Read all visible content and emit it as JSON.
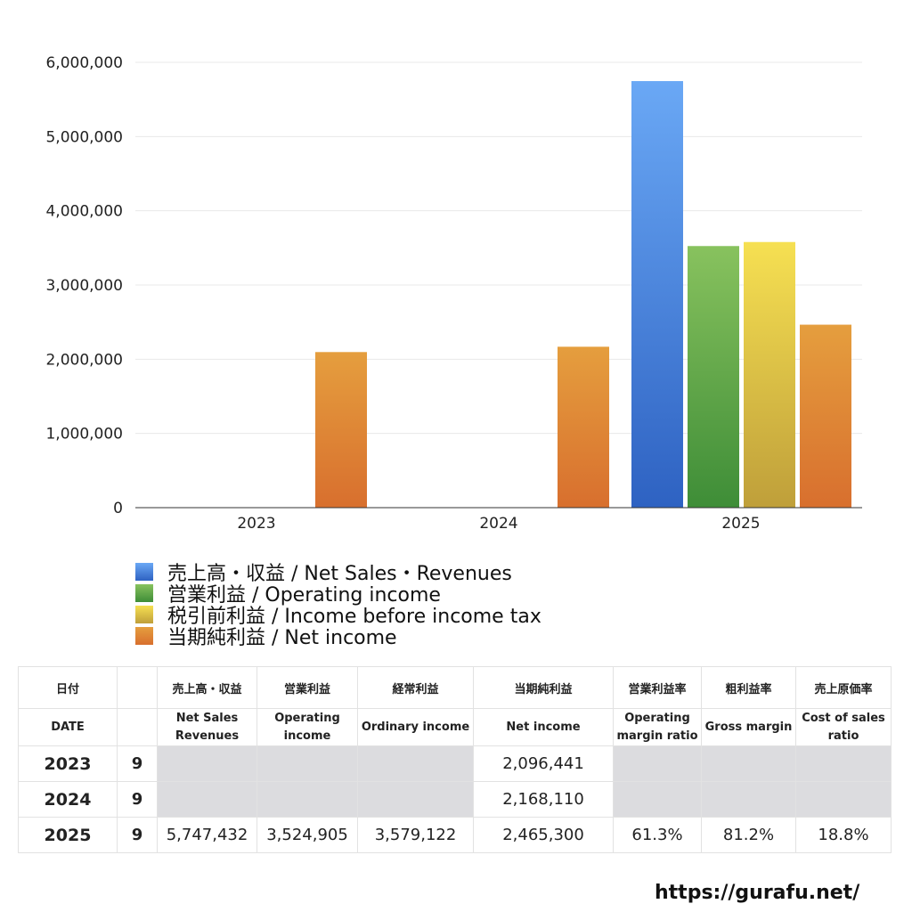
{
  "chart_data": {
    "type": "bar",
    "categories": [
      "2023",
      "2024",
      "2025"
    ],
    "ylim": [
      0,
      6000000
    ],
    "yticks": [
      0,
      1000000,
      2000000,
      3000000,
      4000000,
      5000000,
      6000000
    ],
    "ytick_labels": [
      "0",
      "1,000,000",
      "2,000,000",
      "3,000,000",
      "4,000,000",
      "5,000,000",
      "6,000,000"
    ],
    "grid": true,
    "legend_position": "bottom",
    "series": [
      {
        "name": "売上高・収益 / Net Sales・Revenues",
        "values": [
          null,
          null,
          5747432
        ],
        "color_top": "#6aa8f5",
        "color_bottom": "#2e62c2"
      },
      {
        "name": "営業利益 / Operating income",
        "values": [
          null,
          null,
          3524905
        ],
        "color_top": "#88c25e",
        "color_bottom": "#3e8d37"
      },
      {
        "name": "税引前利益 / Income before income tax",
        "values": [
          null,
          null,
          3579122
        ],
        "color_top": "#f6e052",
        "color_bottom": "#bf9f3a"
      },
      {
        "name": "当期純利益 / Net income",
        "values": [
          2096441,
          2168110,
          2465300
        ],
        "color_top": "#e59e3e",
        "color_bottom": "#d86f2e"
      }
    ]
  },
  "table": {
    "header_jp": [
      "日付",
      "",
      "売上高・収益",
      "営業利益",
      "経常利益",
      "当期純利益",
      "営業利益率",
      "粗利益率",
      "売上原価率"
    ],
    "header_en": [
      "DATE",
      "",
      "Net Sales\nRevenues",
      "Operating\nincome",
      "Ordinary income",
      "Net income",
      "Operating\nmargin ratio",
      "Gross margin",
      "Cost of sales\nratio"
    ],
    "rows": [
      [
        "2023",
        "9",
        "",
        "",
        "",
        "2,096,441",
        "",
        "",
        ""
      ],
      [
        "2024",
        "9",
        "",
        "",
        "",
        "2,168,110",
        "",
        "",
        ""
      ],
      [
        "2025",
        "9",
        "5,747,432",
        "3,524,905",
        "3,579,122",
        "2,465,300",
        "61.3%",
        "81.2%",
        "18.8%"
      ]
    ]
  },
  "footer": {
    "site": "https://gurafu.net/"
  }
}
